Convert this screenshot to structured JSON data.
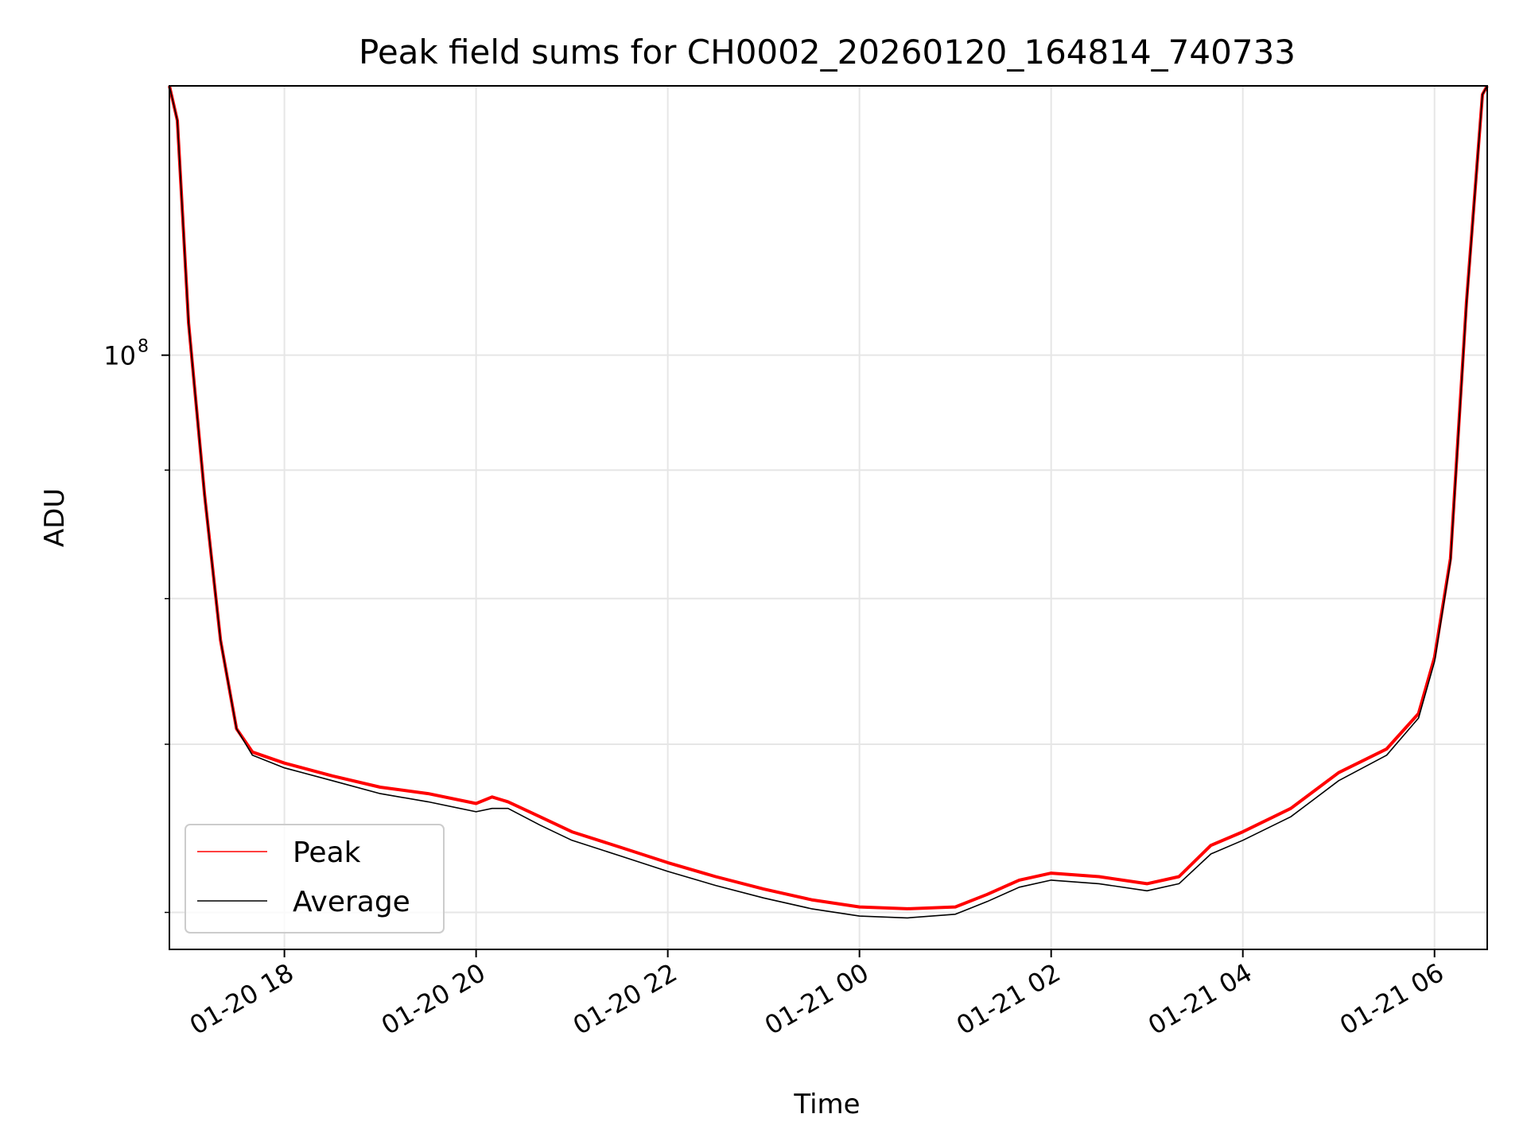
{
  "chart_data": {
    "type": "line",
    "title": "Peak field sums for CH0002_20260120_164814_740733",
    "xlabel": "Time",
    "ylabel": "ADU",
    "y_scale": "log",
    "y_ticks": [
      {
        "value": 100000000,
        "mantissa": "10",
        "exponent": "8"
      }
    ],
    "ylim": [
      58000000,
      128000000
    ],
    "xlim": [
      "2026-01-20 16:48",
      "2026-01-21 06:33"
    ],
    "x_ticks": [
      {
        "value": "2026-01-20 18:00",
        "label": "01-20 18"
      },
      {
        "value": "2026-01-20 20:00",
        "label": "01-20 20"
      },
      {
        "value": "2026-01-20 22:00",
        "label": "01-20 22"
      },
      {
        "value": "2026-01-21 00:00",
        "label": "01-21 00"
      },
      {
        "value": "2026-01-21 02:00",
        "label": "01-21 02"
      },
      {
        "value": "2026-01-21 04:00",
        "label": "01-21 04"
      },
      {
        "value": "2026-01-21 06:00",
        "label": "01-21 06"
      }
    ],
    "grid": true,
    "legend_position": "lower-left",
    "series": [
      {
        "name": "Peak",
        "color": "#ff0000",
        "x": [
          "2026-01-20 16:48",
          "2026-01-20 16:53",
          "2026-01-20 17:00",
          "2026-01-20 17:10",
          "2026-01-20 17:20",
          "2026-01-20 17:30",
          "2026-01-20 17:40",
          "2026-01-20 18:00",
          "2026-01-20 18:30",
          "2026-01-20 19:00",
          "2026-01-20 19:30",
          "2026-01-20 20:00",
          "2026-01-20 20:10",
          "2026-01-20 20:20",
          "2026-01-20 20:40",
          "2026-01-20 21:00",
          "2026-01-20 21:30",
          "2026-01-20 22:00",
          "2026-01-20 22:30",
          "2026-01-20 23:00",
          "2026-01-20 23:30",
          "2026-01-21 00:00",
          "2026-01-21 00:30",
          "2026-01-21 01:00",
          "2026-01-21 01:20",
          "2026-01-21 01:40",
          "2026-01-21 02:00",
          "2026-01-21 02:30",
          "2026-01-21 03:00",
          "2026-01-21 03:20",
          "2026-01-21 03:40",
          "2026-01-21 04:00",
          "2026-01-21 04:30",
          "2026-01-21 05:00",
          "2026-01-21 05:30",
          "2026-01-21 05:50",
          "2026-01-21 06:00",
          "2026-01-21 06:10",
          "2026-01-21 06:20",
          "2026-01-21 06:30",
          "2026-01-21 06:33"
        ],
        "y": [
          128000000,
          124000000,
          103000000,
          88000000,
          77000000,
          71000000,
          69500000,
          68800000,
          68000000,
          67300000,
          66900000,
          66300000,
          66700000,
          66400000,
          65500000,
          64600000,
          63700000,
          62800000,
          62000000,
          61300000,
          60700000,
          60300000,
          60200000,
          60300000,
          61000000,
          61800000,
          62200000,
          62000000,
          61600000,
          62000000,
          63800000,
          64600000,
          66000000,
          68200000,
          69700000,
          72000000,
          75800000,
          83000000,
          105000000,
          127000000,
          128000000
        ]
      },
      {
        "name": "Average",
        "color": "#000000",
        "x": [
          "2026-01-20 16:48",
          "2026-01-20 16:53",
          "2026-01-20 17:00",
          "2026-01-20 17:10",
          "2026-01-20 17:20",
          "2026-01-20 17:30",
          "2026-01-20 17:40",
          "2026-01-20 18:00",
          "2026-01-20 18:30",
          "2026-01-20 19:00",
          "2026-01-20 19:30",
          "2026-01-20 20:00",
          "2026-01-20 20:10",
          "2026-01-20 20:20",
          "2026-01-20 20:40",
          "2026-01-20 21:00",
          "2026-01-20 21:30",
          "2026-01-20 22:00",
          "2026-01-20 22:30",
          "2026-01-20 23:00",
          "2026-01-20 23:30",
          "2026-01-21 00:00",
          "2026-01-21 00:30",
          "2026-01-21 01:00",
          "2026-01-21 01:20",
          "2026-01-21 01:40",
          "2026-01-21 02:00",
          "2026-01-21 02:30",
          "2026-01-21 03:00",
          "2026-01-21 03:20",
          "2026-01-21 03:40",
          "2026-01-21 04:00",
          "2026-01-21 04:30",
          "2026-01-21 05:00",
          "2026-01-21 05:30",
          "2026-01-21 05:50",
          "2026-01-21 06:00",
          "2026-01-21 06:10",
          "2026-01-21 06:20",
          "2026-01-21 06:30",
          "2026-01-21 06:33"
        ],
        "y": [
          128000000,
          124000000,
          103000000,
          88000000,
          77000000,
          71000000,
          69300000,
          68500000,
          67700000,
          66900000,
          66400000,
          65800000,
          66000000,
          66000000,
          65000000,
          64100000,
          63200000,
          62300000,
          61500000,
          60800000,
          60200000,
          59800000,
          59700000,
          59900000,
          60600000,
          61400000,
          61800000,
          61600000,
          61200000,
          61600000,
          63300000,
          64100000,
          65500000,
          67700000,
          69300000,
          71700000,
          75500000,
          82800000,
          104800000,
          127000000,
          128000000
        ]
      }
    ]
  }
}
